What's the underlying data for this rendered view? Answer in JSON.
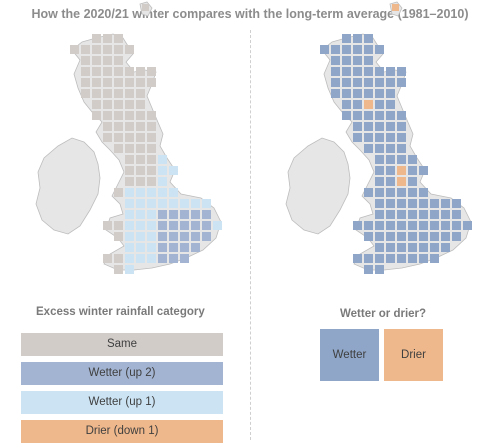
{
  "title": "How the 2020/21 winter compares with the long-term average (1981–2010)",
  "colors": {
    "same": "#d2ccc9",
    "wetter_up2": "#a2b4d2",
    "wetter_up1": "#cbe3f3",
    "drier": "#efb88c",
    "wetter": "#8fa6c8",
    "map_land": "#e6e6e6",
    "map_outline": "#bdbdbd"
  },
  "left_legend": {
    "title": "Excess winter rainfall category",
    "items": [
      {
        "label": "Same",
        "color": "#d2ccc9"
      },
      {
        "label": "Wetter (up 2)",
        "color": "#a2b4d2"
      },
      {
        "label": "Wetter (up 1)",
        "color": "#cbe3f3"
      },
      {
        "label": "Drier (down 1)",
        "color": "#efb88c"
      }
    ]
  },
  "right_legend": {
    "title": "Wetter or drier?",
    "items": [
      {
        "label": "Wetter",
        "color": "#8fa6c8"
      },
      {
        "label": "Drier",
        "color": "#efb88c"
      }
    ]
  }
}
